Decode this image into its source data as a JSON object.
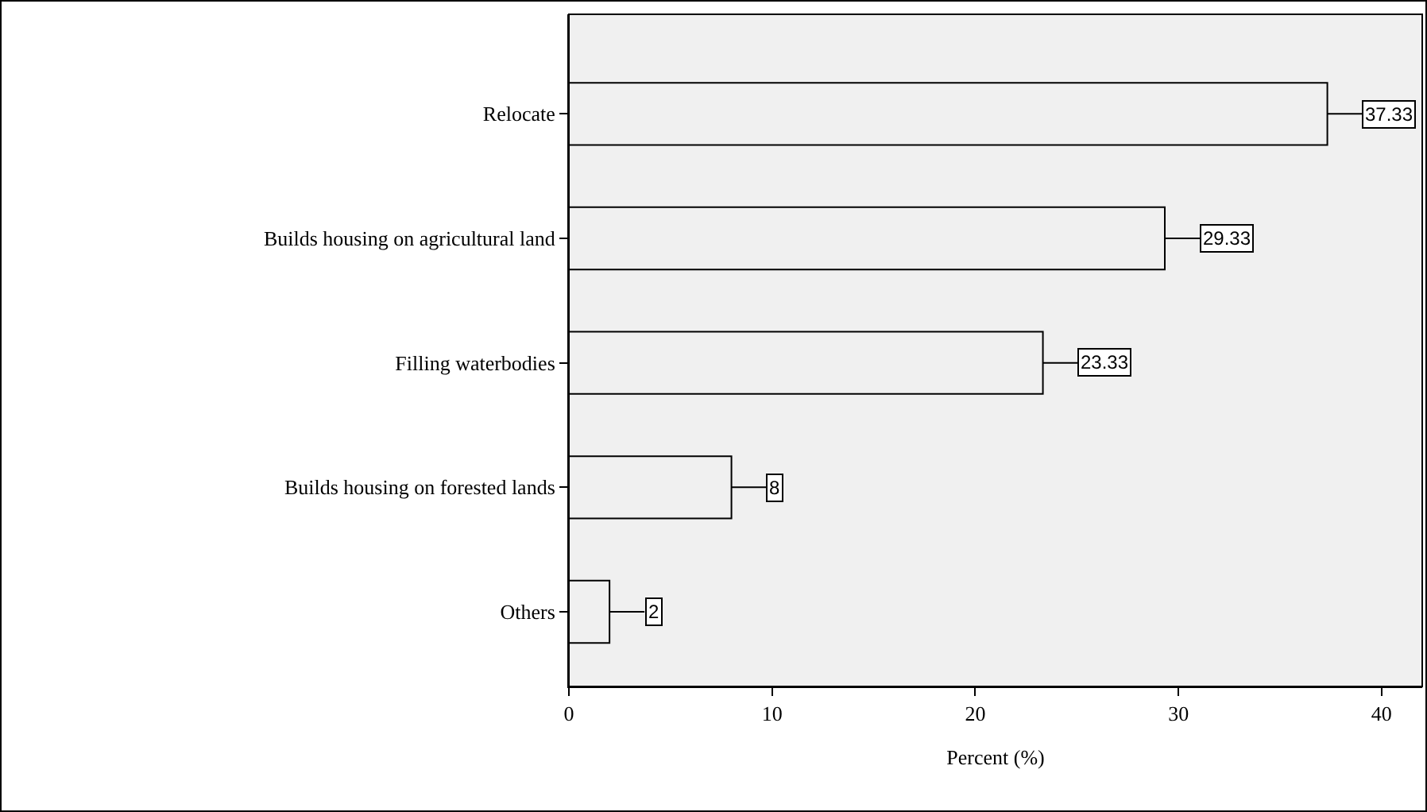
{
  "chart_data": {
    "type": "bar",
    "orientation": "horizontal",
    "xlabel": "Percent (%)",
    "categories": [
      "Relocate",
      "Builds housing on agricultural land",
      "Filling waterbodies",
      "Builds housing on forested lands",
      "Others"
    ],
    "values": [
      37.33,
      29.33,
      23.33,
      8,
      2
    ],
    "color": "#f0f0f0",
    "xlim": [
      0,
      42
    ],
    "xticks": [
      0,
      10,
      20,
      30,
      40
    ],
    "grid": false,
    "legend": false,
    "data_labels": true
  }
}
